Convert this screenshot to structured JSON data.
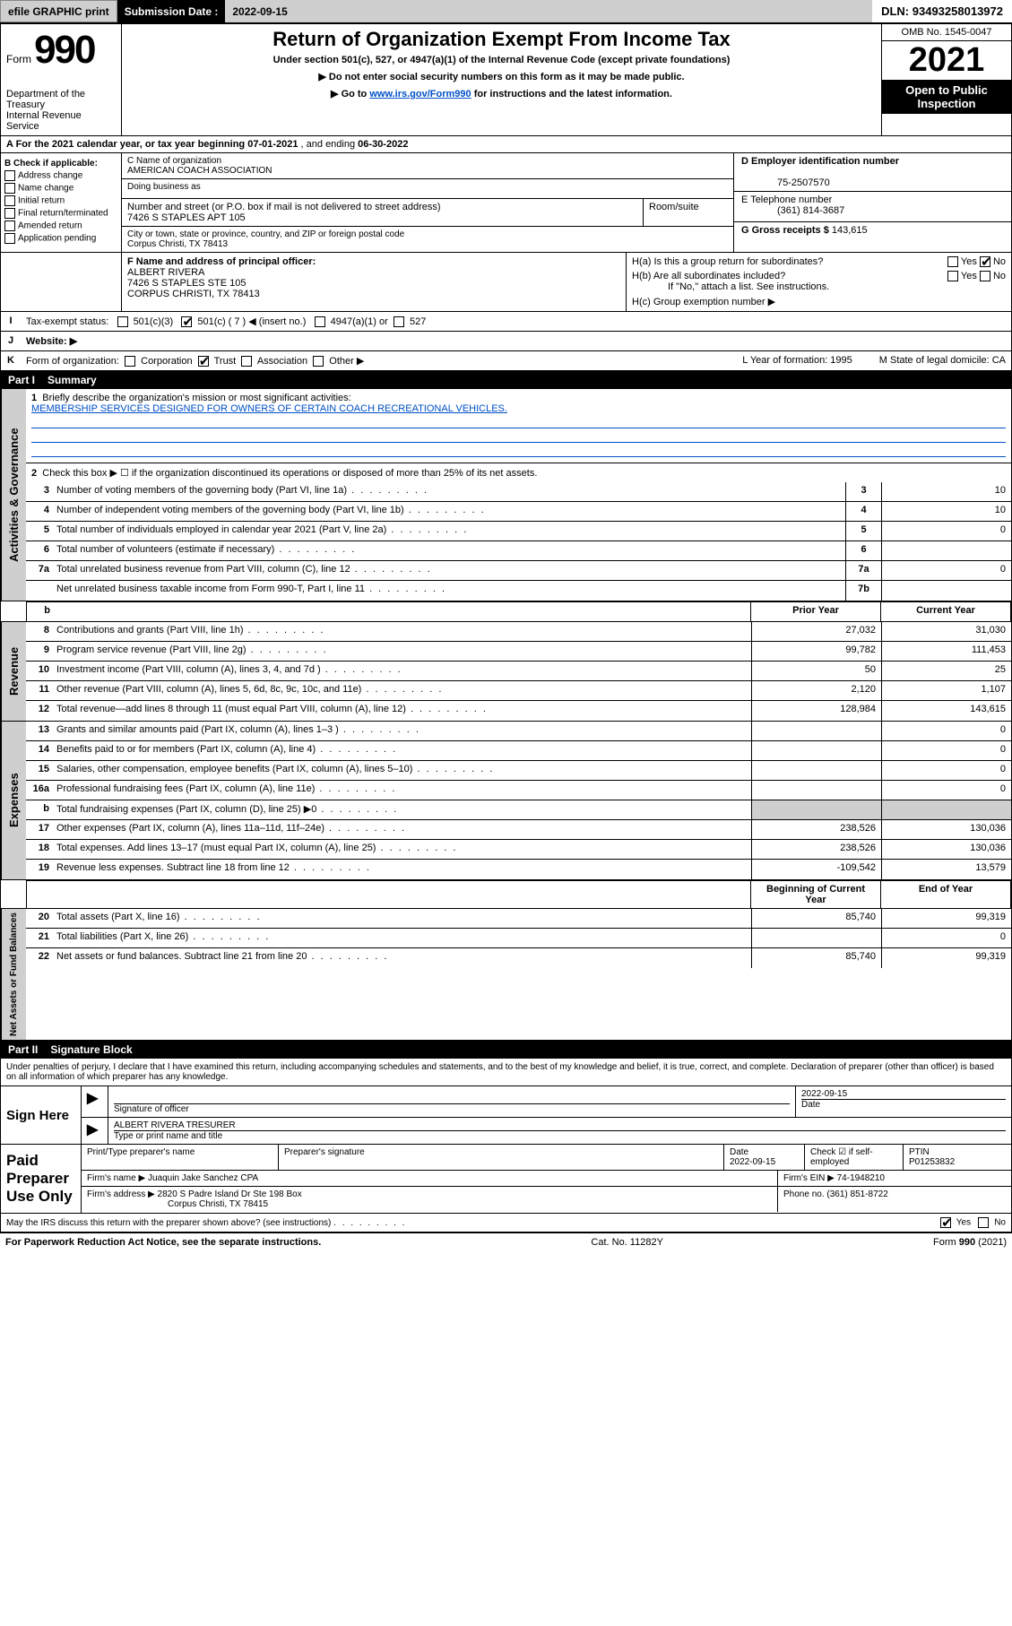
{
  "topbar": {
    "efile_print": "efile GRAPHIC print",
    "sub_label": "Submission Date :",
    "sub_date": "2022-09-15",
    "dln_label": "DLN:",
    "dln": "93493258013972"
  },
  "hdr": {
    "form_word": "Form",
    "form_num": "990",
    "dept1": "Department of the Treasury",
    "dept2": "Internal Revenue Service",
    "title": "Return of Organization Exempt From Income Tax",
    "sub1": "Under section 501(c), 527, or 4947(a)(1) of the Internal Revenue Code (except private foundations)",
    "sub2": "▶ Do not enter social security numbers on this form as it may be made public.",
    "sub3a": "▶ Go to ",
    "sub3_link": "www.irs.gov/Form990",
    "sub3b": " for instructions and the latest information.",
    "omb": "OMB No. 1545-0047",
    "year": "2021",
    "pub": "Open to Public Inspection"
  },
  "period": {
    "a": "A For the 2021 calendar year, or tax year beginning ",
    "begin": "07-01-2021",
    "mid": " , and ending ",
    "end": "06-30-2022"
  },
  "boxB": {
    "label": "B Check if applicable:",
    "items": [
      "Address change",
      "Name change",
      "Initial return",
      "Final return/terminated",
      "Amended return",
      "Application pending"
    ]
  },
  "boxC": {
    "c_lbl": "C Name of organization",
    "name": "AMERICAN COACH ASSOCIATION",
    "dba_lbl": "Doing business as",
    "dba": "",
    "street_lbl": "Number and street (or P.O. box if mail is not delivered to street address)",
    "room_lbl": "Room/suite",
    "street": "7426 S STAPLES APT 105",
    "city_lbl": "City or town, state or province, country, and ZIP or foreign postal code",
    "city": "Corpus Christi, TX  78413"
  },
  "boxD": {
    "lbl": "D Employer identification number",
    "val": "75-2507570"
  },
  "boxE": {
    "lbl": "E Telephone number",
    "val": "(361) 814-3687"
  },
  "boxG": {
    "lbl": "G Gross receipts $",
    "val": "143,615"
  },
  "boxF": {
    "lbl": "F Name and address of principal officer:",
    "name": "ALBERT RIVERA",
    "addr1": "7426 S STAPLES STE 105",
    "addr2": "CORPUS CHRISTI, TX  78413"
  },
  "boxH": {
    "ha": "H(a)  Is this a group return for subordinates?",
    "ha_no": "No",
    "ha_yes": "Yes",
    "hb": "H(b)  Are all subordinates included?",
    "hb_note": "If \"No,\" attach a list. See instructions.",
    "hc": "H(c)  Group exemption number ▶"
  },
  "rowI": {
    "lbl": "I",
    "txt": "Tax-exempt status:",
    "c1": "501(c)(3)",
    "c2": "501(c) ( 7 ) ◀ (insert no.)",
    "c3": "4947(a)(1) or",
    "c4": "527"
  },
  "rowJ": {
    "lbl": "J",
    "txt": "Website: ▶"
  },
  "rowK": {
    "lbl": "K",
    "txt": "Form of organization:",
    "opts": [
      "Corporation",
      "Trust",
      "Association",
      "Other ▶"
    ],
    "l": "L Year of formation: 1995",
    "m": "M State of legal domicile: CA"
  },
  "part1_label": "Part I",
  "part1_title": "Summary",
  "summary": {
    "vtab_gov": "Activities & Governance",
    "vtab_rev": "Revenue",
    "vtab_exp": "Expenses",
    "vtab_net": "Net Assets or Fund Balances",
    "q1": "Briefly describe the organization's mission or most significant activities:",
    "q1_val": "MEMBERSHIP SERVICES DESIGNED FOR OWNERS OF CERTAIN COACH RECREATIONAL VEHICLES.",
    "q2": "Check this box ▶ ☐  if the organization discontinued its operations or disposed of more than 25% of its net assets.",
    "rows_gov": [
      {
        "n": "3",
        "t": "Number of voting members of the governing body (Part VI, line 1a)",
        "b": "3",
        "v": "10"
      },
      {
        "n": "4",
        "t": "Number of independent voting members of the governing body (Part VI, line 1b)",
        "b": "4",
        "v": "10"
      },
      {
        "n": "5",
        "t": "Total number of individuals employed in calendar year 2021 (Part V, line 2a)",
        "b": "5",
        "v": "0"
      },
      {
        "n": "6",
        "t": "Total number of volunteers (estimate if necessary)",
        "b": "6",
        "v": ""
      },
      {
        "n": "7a",
        "t": "Total unrelated business revenue from Part VIII, column (C), line 12",
        "b": "7a",
        "v": "0"
      },
      {
        "n": "",
        "t": "Net unrelated business taxable income from Form 990-T, Part I, line 11",
        "b": "7b",
        "v": ""
      }
    ],
    "hdr_b": "b",
    "col_prior": "Prior Year",
    "col_curr": "Current Year",
    "rows_rev": [
      {
        "n": "8",
        "t": "Contributions and grants (Part VIII, line 1h)",
        "p": "27,032",
        "c": "31,030"
      },
      {
        "n": "9",
        "t": "Program service revenue (Part VIII, line 2g)",
        "p": "99,782",
        "c": "111,453"
      },
      {
        "n": "10",
        "t": "Investment income (Part VIII, column (A), lines 3, 4, and 7d )",
        "p": "50",
        "c": "25"
      },
      {
        "n": "11",
        "t": "Other revenue (Part VIII, column (A), lines 5, 6d, 8c, 9c, 10c, and 11e)",
        "p": "2,120",
        "c": "1,107"
      },
      {
        "n": "12",
        "t": "Total revenue—add lines 8 through 11 (must equal Part VIII, column (A), line 12)",
        "p": "128,984",
        "c": "143,615"
      }
    ],
    "rows_exp": [
      {
        "n": "13",
        "t": "Grants and similar amounts paid (Part IX, column (A), lines 1–3 )",
        "p": "",
        "c": "0"
      },
      {
        "n": "14",
        "t": "Benefits paid to or for members (Part IX, column (A), line 4)",
        "p": "",
        "c": "0"
      },
      {
        "n": "15",
        "t": "Salaries, other compensation, employee benefits (Part IX, column (A), lines 5–10)",
        "p": "",
        "c": "0"
      },
      {
        "n": "16a",
        "t": "Professional fundraising fees (Part IX, column (A), line 11e)",
        "p": "",
        "c": "0"
      },
      {
        "n": "b",
        "t": "Total fundraising expenses (Part IX, column (D), line 25) ▶0",
        "p": "grey",
        "c": "grey"
      },
      {
        "n": "17",
        "t": "Other expenses (Part IX, column (A), lines 11a–11d, 11f–24e)",
        "p": "238,526",
        "c": "130,036"
      },
      {
        "n": "18",
        "t": "Total expenses. Add lines 13–17 (must equal Part IX, column (A), line 25)",
        "p": "238,526",
        "c": "130,036"
      },
      {
        "n": "19",
        "t": "Revenue less expenses. Subtract line 18 from line 12",
        "p": "-109,542",
        "c": "13,579"
      }
    ],
    "col_begin": "Beginning of Current Year",
    "col_end": "End of Year",
    "rows_net": [
      {
        "n": "20",
        "t": "Total assets (Part X, line 16)",
        "p": "85,740",
        "c": "99,319"
      },
      {
        "n": "21",
        "t": "Total liabilities (Part X, line 26)",
        "p": "",
        "c": "0"
      },
      {
        "n": "22",
        "t": "Net assets or fund balances. Subtract line 21 from line 20",
        "p": "85,740",
        "c": "99,319"
      }
    ]
  },
  "part2_label": "Part II",
  "part2_title": "Signature Block",
  "sig_decl": "Under penalties of perjury, I declare that I have examined this return, including accompanying schedules and statements, and to the best of my knowledge and belief, it is true, correct, and complete. Declaration of preparer (other than officer) is based on all information of which preparer has any knowledge.",
  "sign": {
    "here": "Sign Here",
    "sig_of": "Signature of officer",
    "date_lbl": "Date",
    "date": "2022-09-15",
    "name": "ALBERT RIVERA  TRESURER",
    "name_lbl": "Type or print name and title"
  },
  "paid": {
    "lbl": "Paid Preparer Use Only",
    "h1": "Print/Type preparer's name",
    "h2": "Preparer's signature",
    "h3_lbl": "Date",
    "h3": "2022-09-15",
    "h4": "Check ☑ if self-employed",
    "h5_lbl": "PTIN",
    "h5": "P01253832",
    "firm_name_lbl": "Firm's name    ▶",
    "firm_name": "Juaquin Jake Sanchez CPA",
    "firm_ein_lbl": "Firm's EIN ▶",
    "firm_ein": "74-1948210",
    "firm_addr_lbl": "Firm's address ▶",
    "firm_addr1": "2820 S Padre Island Dr Ste 198 Box",
    "firm_addr2": "Corpus Christi, TX  78415",
    "phone_lbl": "Phone no.",
    "phone": "(361) 851-8722"
  },
  "discuss": {
    "txt": "May the IRS discuss this return with the preparer shown above? (see instructions)",
    "yes": "Yes",
    "no": "No"
  },
  "foot": {
    "left": "For Paperwork Reduction Act Notice, see the separate instructions.",
    "mid": "Cat. No. 11282Y",
    "right": "Form 990 (2021)"
  }
}
